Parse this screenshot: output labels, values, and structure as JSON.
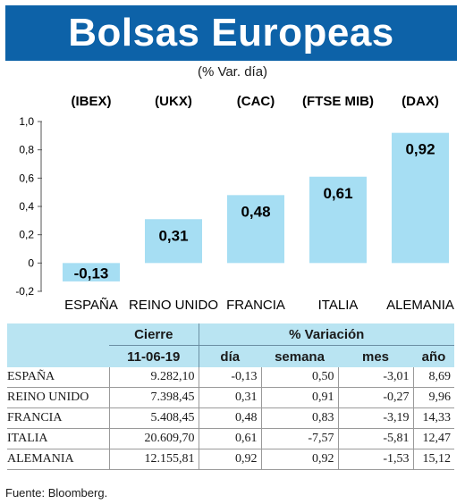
{
  "title": "Bolsas Europeas",
  "subtitle": "(% Var. día)",
  "chart_data": {
    "type": "bar",
    "categories": [
      "ESPAÑA",
      "REINO UNIDO",
      "FRANCIA",
      "ITALIA",
      "ALEMANIA"
    ],
    "indices": [
      "(IBEX)",
      "(UKX)",
      "(CAC)",
      "(FTSE MIB)",
      "(DAX)"
    ],
    "values": [
      -0.13,
      0.31,
      0.48,
      0.61,
      0.92
    ],
    "value_labels": [
      "-0,13",
      "0,31",
      "0,48",
      "0,61",
      "0,92"
    ],
    "ylim": [
      -0.2,
      1.0
    ],
    "yticks": [
      -0.2,
      0,
      0.2,
      0.4,
      0.6,
      0.8,
      1.0
    ],
    "ytick_labels": [
      "-0,2",
      "0",
      "0,2",
      "0,4",
      "0,6",
      "0,8",
      "1,0"
    ],
    "bar_color": "#a6def3",
    "grid": false
  },
  "table": {
    "header_cierre": "Cierre",
    "header_variacion": "% Variación",
    "date": "11-06-19",
    "col_dia": "día",
    "col_semana": "semana",
    "col_mes": "mes",
    "col_ano": "año",
    "rows": [
      {
        "country": "ESPAÑA",
        "cierre": "9.282,10",
        "dia": "-0,13",
        "semana": "0,50",
        "mes": "-3,01",
        "ano": "8,69"
      },
      {
        "country": "REINO UNIDO",
        "cierre": "7.398,45",
        "dia": "0,31",
        "semana": "0,91",
        "mes": "-0,27",
        "ano": "9,96"
      },
      {
        "country": "FRANCIA",
        "cierre": "5.408,45",
        "dia": "0,48",
        "semana": "0,83",
        "mes": "-3,19",
        "ano": "14,33"
      },
      {
        "country": "ITALIA",
        "cierre": "20.609,70",
        "dia": "0,61",
        "semana": "-7,57",
        "mes": "-5,81",
        "ano": "12,47"
      },
      {
        "country": "ALEMANIA",
        "cierre": "12.155,81",
        "dia": "0,92",
        "semana": "0,92",
        "mes": "-1,53",
        "ano": "15,12"
      }
    ]
  },
  "source": "Fuente: Bloomberg."
}
